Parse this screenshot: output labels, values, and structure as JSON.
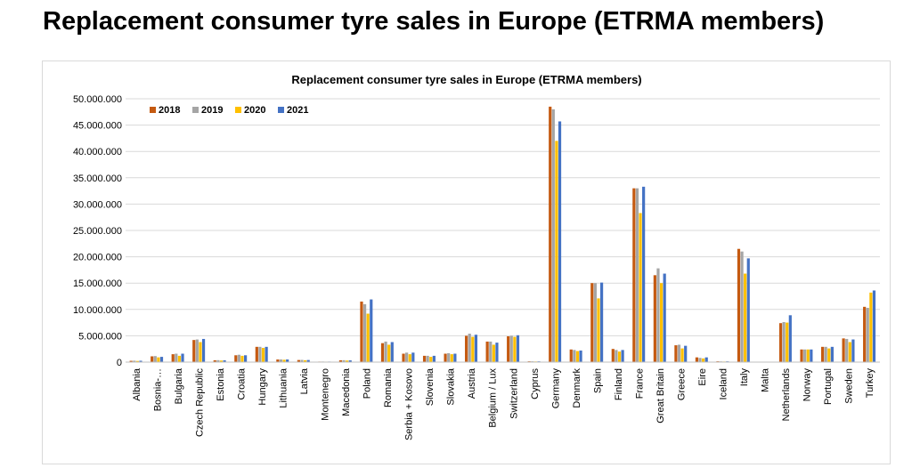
{
  "page": {
    "title": "Replacement consumer tyre sales in Europe (ETRMA members)"
  },
  "chart_data": {
    "type": "bar",
    "title": "Replacement consumer tyre sales in Europe (ETRMA members)",
    "xlabel": "",
    "ylabel": "",
    "ylim": [
      0,
      50000000
    ],
    "yticks": [
      0,
      5000000,
      10000000,
      15000000,
      20000000,
      25000000,
      30000000,
      35000000,
      40000000,
      45000000,
      50000000
    ],
    "ytick_labels": [
      "0",
      "5.000.000",
      "10.000.000",
      "15.000.000",
      "20.000.000",
      "25.000.000",
      "30.000.000",
      "35.000.000",
      "40.000.000",
      "45.000.000",
      "50.000.000"
    ],
    "grid": true,
    "legend_position": "top-left",
    "categories": [
      "Albania",
      "Bosnia-…",
      "Bulgaria",
      "Czech Republic",
      "Estonia",
      "Croatia",
      "Hungary",
      "Lithuania",
      "Latvia",
      "Montenegro",
      "Macedonia",
      "Poland",
      "Romania",
      "Serbia + Kosovo",
      "Slovenia",
      "Slovakia",
      "Austria",
      "Belgium / Lux",
      "Switzerland",
      "Cyprus",
      "Germany",
      "Denmark",
      "Spain",
      "Finland",
      "France",
      "Great Britain",
      "Greece",
      "Eire",
      "Iceland",
      "Italy",
      "Malta",
      "Netherlands",
      "Norway",
      "Portugal",
      "Sweden",
      "Turkey"
    ],
    "series": [
      {
        "name": "2018",
        "color": "#c55a11",
        "values": [
          250000,
          1100000,
          1500000,
          4200000,
          350000,
          1300000,
          2900000,
          500000,
          400000,
          100000,
          350000,
          11500000,
          3600000,
          1600000,
          1200000,
          1600000,
          5000000,
          3900000,
          4900000,
          150000,
          48500000,
          2400000,
          15000000,
          2500000,
          33000000,
          16500000,
          3200000,
          900000,
          150000,
          21500000,
          30000,
          7400000,
          2400000,
          2900000,
          4500000,
          10500000
        ]
      },
      {
        "name": "2019",
        "color": "#a5a5a5",
        "values": [
          270000,
          1150000,
          1600000,
          4300000,
          370000,
          1400000,
          2900000,
          500000,
          420000,
          110000,
          360000,
          11000000,
          3900000,
          1800000,
          1200000,
          1700000,
          5400000,
          3900000,
          5000000,
          150000,
          48000000,
          2300000,
          15000000,
          2300000,
          33000000,
          17800000,
          3300000,
          800000,
          130000,
          21000000,
          30000,
          7600000,
          2400000,
          2900000,
          4400000,
          10300000
        ]
      },
      {
        "name": "2020",
        "color": "#ffc000",
        "values": [
          220000,
          900000,
          1200000,
          3800000,
          300000,
          1200000,
          2700000,
          450000,
          350000,
          90000,
          300000,
          9200000,
          3300000,
          1500000,
          1000000,
          1500000,
          4800000,
          3300000,
          4800000,
          120000,
          42000000,
          2100000,
          12100000,
          2000000,
          28300000,
          15000000,
          2600000,
          700000,
          110000,
          16800000,
          25000,
          7500000,
          2400000,
          2600000,
          3800000,
          13200000
        ]
      },
      {
        "name": "2021",
        "color": "#4472c4",
        "values": [
          260000,
          1000000,
          1600000,
          4400000,
          340000,
          1300000,
          2900000,
          500000,
          400000,
          100000,
          330000,
          11900000,
          3800000,
          1800000,
          1200000,
          1600000,
          5200000,
          3700000,
          5100000,
          140000,
          45700000,
          2200000,
          15100000,
          2300000,
          33300000,
          16800000,
          3100000,
          900000,
          140000,
          19700000,
          30000,
          8900000,
          2400000,
          2900000,
          4300000,
          13600000
        ]
      }
    ]
  }
}
